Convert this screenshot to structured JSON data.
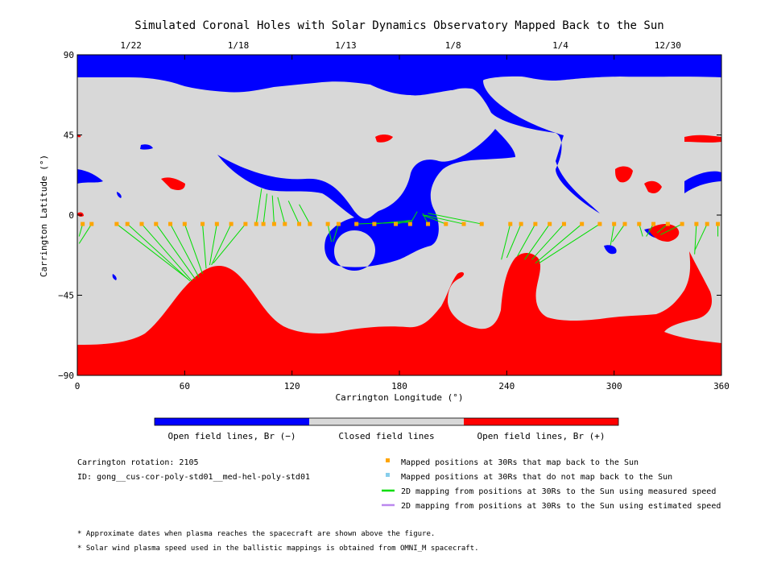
{
  "chart_data": {
    "type": "map",
    "title": "Simulated Coronal Holes with Solar Dynamics Observatory Mapped Back to the Sun",
    "xlabel": "Carrington Longitude (°)",
    "ylabel": "Carrington Latitude (°)",
    "xlim": [
      0,
      360
    ],
    "ylim": [
      -90,
      90
    ],
    "x_ticks": [
      "0",
      "60",
      "120",
      "180",
      "240",
      "300",
      "360"
    ],
    "y_ticks": [
      "90",
      "45",
      "0",
      "−45",
      "−90"
    ],
    "date_ticks": [
      {
        "label": "1/22",
        "lon": 30
      },
      {
        "label": "1/18",
        "lon": 90
      },
      {
        "label": "1/13",
        "lon": 150
      },
      {
        "label": "1/8",
        "lon": 210
      },
      {
        "label": "1/4",
        "lon": 270
      },
      {
        "label": "12/30",
        "lon": 330
      }
    ],
    "colors": {
      "open_negative": "#0000ff",
      "closed": "#d8d8d8",
      "open_positive": "#ff0000",
      "mapped_point": "#ffa500",
      "unmapped_point": "#87ceeb",
      "measured_line": "#00dd00",
      "estimated_line": "#bb88ee"
    },
    "colorbar": {
      "open_neg_label": "Open field lines, Br (−)",
      "closed_label": "Closed field lines",
      "open_pos_label": "Open field lines, Br (+)"
    },
    "spacecraft_track_lat": -5,
    "mappings": [
      {
        "from": 3,
        "to": [
          1,
          -12
        ]
      },
      {
        "from": 8,
        "to": [
          1,
          -16
        ]
      },
      {
        "from": 22,
        "to": [
          62,
          -36
        ]
      },
      {
        "from": 28,
        "to": [
          63,
          -37
        ]
      },
      {
        "from": 36,
        "to": [
          64,
          -37
        ]
      },
      {
        "from": 44,
        "to": [
          66,
          -36
        ]
      },
      {
        "from": 52,
        "to": [
          68,
          -35
        ]
      },
      {
        "from": 60,
        "to": [
          70,
          -33
        ]
      },
      {
        "from": 70,
        "to": [
          72,
          -30
        ]
      },
      {
        "from": 78,
        "to": [
          74,
          -28
        ]
      },
      {
        "from": 86,
        "to": [
          75,
          -28
        ]
      },
      {
        "from": 94,
        "to": [
          76,
          -27
        ]
      },
      {
        "from": 100,
        "to": [
          103,
          15
        ]
      },
      {
        "from": 104,
        "to": [
          106,
          12
        ]
      },
      {
        "from": 110,
        "to": [
          109,
          11
        ]
      },
      {
        "from": 116,
        "to": [
          112,
          10
        ]
      },
      {
        "from": 124,
        "to": [
          118,
          8
        ]
      },
      {
        "from": 130,
        "to": [
          124,
          6
        ]
      },
      {
        "from": 140,
        "to": [
          142,
          -15
        ]
      },
      {
        "from": 146,
        "to": [
          143,
          -15
        ]
      },
      {
        "from": 156,
        "to": [
          186,
          -4
        ]
      },
      {
        "from": 166,
        "to": [
          186,
          -3
        ]
      },
      {
        "from": 178,
        "to": [
          187,
          -3
        ]
      },
      {
        "from": 186,
        "to": [
          190,
          2
        ]
      },
      {
        "from": 196,
        "to": [
          193,
          1
        ]
      },
      {
        "from": 206,
        "to": [
          193,
          0
        ]
      },
      {
        "from": 216,
        "to": [
          194,
          0
        ]
      },
      {
        "from": 226,
        "to": [
          196,
          1
        ]
      },
      {
        "from": 242,
        "to": [
          237,
          -25
        ]
      },
      {
        "from": 248,
        "to": [
          240,
          -24
        ]
      },
      {
        "from": 256,
        "to": [
          246,
          -23
        ]
      },
      {
        "from": 264,
        "to": [
          250,
          -25
        ]
      },
      {
        "from": 272,
        "to": [
          254,
          -25
        ]
      },
      {
        "from": 282,
        "to": [
          256,
          -27
        ]
      },
      {
        "from": 292,
        "to": [
          258,
          -27
        ]
      },
      {
        "from": 300,
        "to": [
          298,
          -17
        ]
      },
      {
        "from": 306,
        "to": [
          299,
          -15
        ]
      },
      {
        "from": 314,
        "to": [
          316,
          -12
        ]
      },
      {
        "from": 322,
        "to": [
          318,
          -12
        ]
      },
      {
        "from": 330,
        "to": [
          324,
          -10
        ]
      },
      {
        "from": 338,
        "to": [
          326,
          -11
        ]
      },
      {
        "from": 346,
        "to": [
          345,
          -22
        ]
      },
      {
        "from": 352,
        "to": [
          345,
          -20
        ]
      },
      {
        "from": 358,
        "to": [
          358,
          -12
        ]
      }
    ]
  },
  "info": {
    "rotation": "Carrington rotation: 2105",
    "id": "ID: gong__cus-cor-poly-std01__med-hel-poly-std01"
  },
  "legend": {
    "mapped": "Mapped positions at 30Rs that map back to the Sun",
    "unmapped": "Mapped positions at 30Rs that do not map back to the Sun",
    "measured": "2D mapping from positions at 30Rs to the Sun using measured speed",
    "estimated": "2D mapping from positions at 30Rs to the Sun using estimated speed"
  },
  "notes": {
    "note1": "* Approximate dates when plasma reaches the spacecraft are shown above the figure.",
    "note2": "* Solar wind plasma speed used in the ballistic mappings is obtained from OMNI_M spacecraft."
  }
}
